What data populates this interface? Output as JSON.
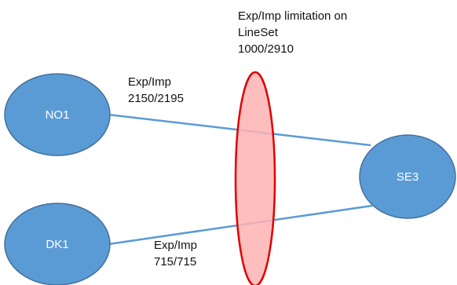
{
  "nodes": {
    "no1": "NO1",
    "dk1": "DK1",
    "se3": "SE3"
  },
  "links": {
    "no1_se3": {
      "line1": "Exp/Imp",
      "line2": "2150/2195"
    },
    "dk1_se3": {
      "line1": "Exp/Imp",
      "line2": "715/715"
    }
  },
  "limitation": {
    "line1": "Exp/Imp limitation on",
    "line2": "LineSet",
    "line3": "1000/2910"
  },
  "colors": {
    "node_fill": "#5B9BD5",
    "node_stroke": "#41719C",
    "link": "#5B9BD5",
    "lineset_fill": "#FFB3B3",
    "lineset_stroke": "#E00000"
  }
}
